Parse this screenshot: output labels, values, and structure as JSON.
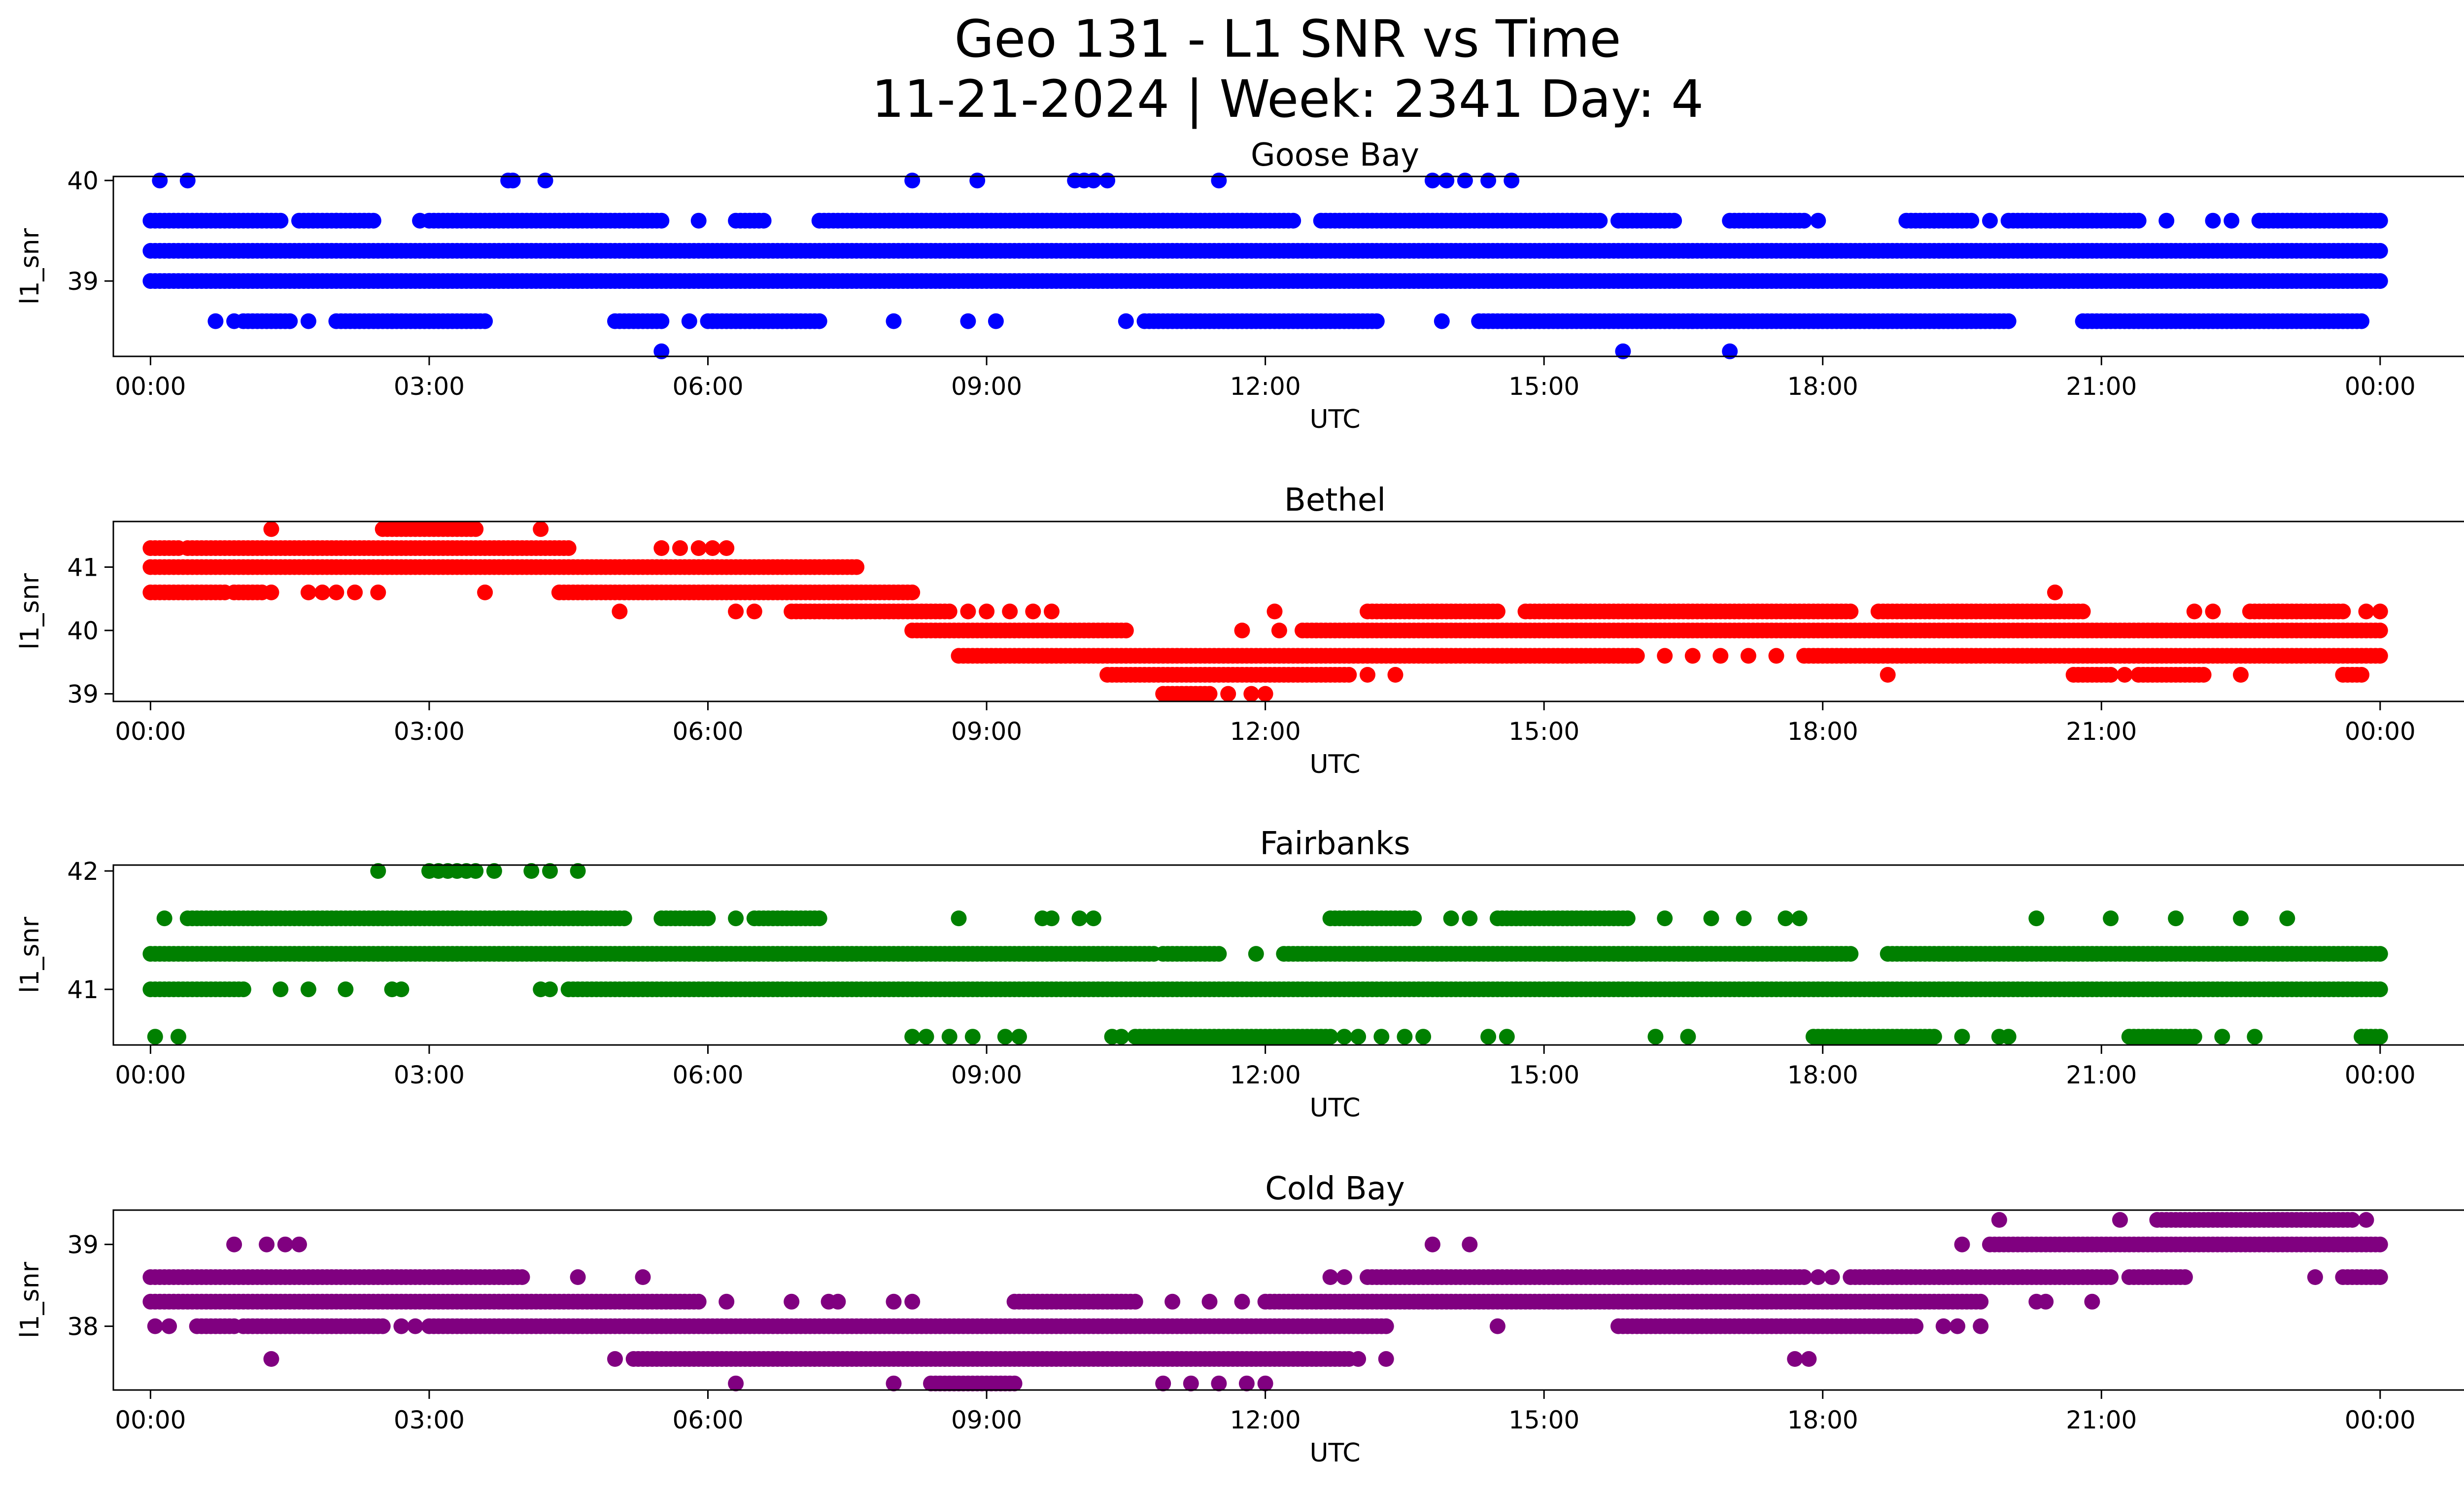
{
  "figure": {
    "title_line1": "Geo 131 - L1 SNR vs Time",
    "title_line2": "11-21-2024 | Week: 2341 Day: 4"
  },
  "chart_data": [
    {
      "type": "scatter",
      "title": "Goose Bay",
      "xlabel": "UTC",
      "ylabel": "l1_snr",
      "color": "#0000ff",
      "x_unit": "hours UTC on 11-21-2024 (24 = next 00:00)",
      "xlim": [
        -0.4,
        25.9
      ],
      "ylim": [
        38.25,
        40.04
      ],
      "xticks": [
        "00:00",
        "03:00",
        "06:00",
        "09:00",
        "12:00",
        "15:00",
        "18:00",
        "21:00",
        "00:00"
      ],
      "yticks": [
        39,
        40
      ],
      "series": [
        {
          "bands": [
            {
              "y": 39.3,
              "segments": [
                [
                  0.0,
                  24.0
                ]
              ]
            },
            {
              "y": 39.0,
              "segments": [
                [
                  0.0,
                  24.0
                ]
              ]
            },
            {
              "y": 39.6,
              "segments": [
                [
                  0.0,
                  1.4
                ],
                [
                  1.6,
                  2.4
                ],
                [
                  3.0,
                  5.5
                ],
                [
                  6.3,
                  6.6
                ],
                [
                  7.2,
                  12.3
                ],
                [
                  12.6,
                  15.6
                ],
                [
                  15.8,
                  16.4
                ],
                [
                  17.0,
                  17.8
                ],
                [
                  18.9,
                  19.6
                ],
                [
                  20.0,
                  21.4
                ],
                [
                  22.7,
                  24.0
                ]
              ],
              "points": [
                1.75,
                2.0,
                2.9,
                5.9,
                8.0,
                10.9,
                13.4,
                17.15,
                17.5,
                17.95,
                19.2,
                19.8,
                21.7,
                22.2,
                22.4
              ]
            },
            {
              "y": 38.6,
              "segments": [
                [
                  1.0,
                  1.5
                ],
                [
                  2.0,
                  2.6
                ],
                [
                  2.6,
                  3.6
                ],
                [
                  5.0,
                  5.5
                ],
                [
                  6.0,
                  7.2
                ],
                [
                  10.7,
                  13.2
                ],
                [
                  14.3,
                  16.6
                ],
                [
                  16.6,
                  20.0
                ],
                [
                  20.8,
                  23.8
                ]
              ],
              "points": [
                0.7,
                0.9,
                1.7,
                5.8,
                6.05,
                8.0,
                8.8,
                9.1,
                10.5,
                13.9
              ]
            },
            {
              "y": 40.0,
              "points": [
                0.1,
                0.4,
                3.85,
                3.9,
                4.25,
                8.2,
                8.9,
                9.95,
                10.05,
                10.15,
                10.3,
                11.5,
                13.8,
                13.95,
                14.15,
                14.4,
                14.65
              ]
            },
            {
              "y": 38.3,
              "points": [
                5.5,
                15.85,
                17.0
              ]
            }
          ]
        }
      ]
    },
    {
      "type": "scatter",
      "title": "Bethel",
      "xlabel": "UTC",
      "ylabel": "l1_snr",
      "color": "#ff0000",
      "x_unit": "hours UTC on 11-21-2024 (24 = next 00:00)",
      "xlim": [
        -0.4,
        25.9
      ],
      "ylim": [
        38.88,
        41.72
      ],
      "xticks": [
        "00:00",
        "03:00",
        "06:00",
        "09:00",
        "12:00",
        "15:00",
        "18:00",
        "21:00",
        "00:00"
      ],
      "yticks": [
        39,
        40,
        41
      ],
      "series": [
        {
          "bands": [
            {
              "y": 41.3,
              "segments": [
                [
                  0.0,
                  0.3
                ],
                [
                  0.4,
                  4.5
                ]
              ],
              "points": [
                5.5,
                5.7,
                5.9,
                6.05,
                6.2
              ]
            },
            {
              "y": 41.0,
              "segments": [
                [
                  0.0,
                  7.6
                ]
              ]
            },
            {
              "y": 40.6,
              "segments": [
                [
                  0.0,
                  0.8
                ],
                [
                  0.9,
                  1.2
                ],
                [
                  4.4,
                  8.2
                ]
              ],
              "points": [
                1.3,
                1.7,
                1.85,
                2.0,
                2.2,
                2.45,
                3.6,
                20.5
              ]
            },
            {
              "y": 40.3,
              "segments": [
                [
                  6.9,
                  8.6
                ],
                [
                  13.1,
                  14.5
                ],
                [
                  14.8,
                  18.3
                ],
                [
                  18.6,
                  20.8
                ],
                [
                  22.6,
                  23.6
                ]
              ],
              "points": [
                5.05,
                6.3,
                6.5,
                8.8,
                9.0,
                9.25,
                9.5,
                9.7,
                12.1,
                22.0,
                22.2,
                23.85,
                24.0
              ]
            },
            {
              "y": 40.0,
              "segments": [
                [
                  8.2,
                  10.5
                ],
                [
                  12.4,
                  24.0
                ]
              ],
              "points": [
                11.75,
                12.15
              ]
            },
            {
              "y": 39.6,
              "segments": [
                [
                  8.7,
                  16.0
                ],
                [
                  17.8,
                  24.0
                ]
              ],
              "points": [
                16.3,
                16.6,
                16.9,
                17.2,
                17.5
              ]
            },
            {
              "y": 39.3,
              "segments": [
                [
                  10.3,
                  12.9
                ],
                [
                  20.7,
                  21.1
                ],
                [
                  21.4,
                  22.1
                ],
                [
                  23.6,
                  23.8
                ]
              ],
              "points": [
                13.1,
                13.4,
                18.7,
                21.25,
                22.5
              ]
            },
            {
              "y": 39.0,
              "segments": [
                [
                  10.9,
                  11.4
                ]
              ],
              "points": [
                11.6,
                11.85,
                12.0
              ]
            },
            {
              "y": 41.6,
              "segments": [
                [
                  2.5,
                  3.5
                ]
              ],
              "points": [
                1.3,
                4.2
              ]
            }
          ]
        }
      ]
    },
    {
      "type": "scatter",
      "title": "Fairbanks",
      "xlabel": "UTC",
      "ylabel": "l1_snr",
      "color": "#008000",
      "x_unit": "hours UTC on 11-21-2024 (24 = next 00:00)",
      "xlim": [
        -0.4,
        25.9
      ],
      "ylim": [
        40.53,
        42.05
      ],
      "xticks": [
        "00:00",
        "03:00",
        "06:00",
        "09:00",
        "12:00",
        "15:00",
        "18:00",
        "21:00",
        "00:00"
      ],
      "yticks": [
        41,
        42
      ],
      "series": [
        {
          "bands": [
            {
              "y": 41.3,
              "segments": [
                [
                  0.0,
                  10.8
                ],
                [
                  10.9,
                  11.5
                ],
                [
                  12.2,
                  18.3
                ],
                [
                  18.7,
                  24.0
                ]
              ],
              "points": [
                11.9
              ]
            },
            {
              "y": 41.0,
              "segments": [
                [
                  0.0,
                  1.0
                ],
                [
                  4.5,
                  24.0
                ]
              ],
              "points": [
                1.4,
                1.7,
                2.1,
                2.6,
                2.7,
                4.2,
                4.3
              ]
            },
            {
              "y": 41.6,
              "segments": [
                [
                  0.4,
                  5.1
                ],
                [
                  5.5,
                  6.0
                ],
                [
                  6.5,
                  7.2
                ],
                [
                  12.7,
                  13.6
                ],
                [
                  14.5,
                  15.9
                ]
              ],
              "points": [
                0.15,
                6.3,
                8.7,
                9.6,
                9.7,
                10.0,
                10.15,
                14.0,
                14.2,
                16.3,
                16.8,
                17.15,
                17.6,
                17.75,
                20.3,
                21.1,
                21.8,
                22.5,
                23.0
              ]
            },
            {
              "y": 40.6,
              "segments": [
                [
                  10.6,
                  12.7
                ],
                [
                  17.9,
                  19.2
                ],
                [
                  21.3,
                  22.0
                ],
                [
                  23.8,
                  24.0
                ]
              ],
              "points": [
                0.05,
                0.3,
                8.2,
                8.35,
                8.6,
                8.85,
                9.2,
                9.35,
                10.35,
                10.45,
                12.85,
                13.0,
                13.25,
                13.5,
                13.7,
                14.4,
                14.6,
                16.2,
                16.55,
                19.5,
                19.9,
                20.0,
                22.3,
                22.65
              ]
            },
            {
              "y": 42.0,
              "points": [
                2.45,
                3.0,
                3.1,
                3.2,
                3.3,
                3.4,
                3.5,
                3.7,
                4.1,
                4.3,
                4.6
              ]
            }
          ]
        }
      ]
    },
    {
      "type": "scatter",
      "title": "Cold Bay",
      "xlabel": "UTC",
      "ylabel": "l1_snr",
      "color": "#800080",
      "x_unit": "hours UTC on 11-21-2024 (24 = next 00:00)",
      "xlim": [
        -0.4,
        25.9
      ],
      "ylim": [
        37.22,
        39.42
      ],
      "xticks": [
        "00:00",
        "03:00",
        "06:00",
        "09:00",
        "12:00",
        "15:00",
        "18:00",
        "21:00",
        "00:00"
      ],
      "yticks": [
        38,
        39
      ],
      "series": [
        {
          "bands": [
            {
              "y": 38.6,
              "segments": [
                [
                  0.0,
                  4.0
                ],
                [
                  13.1,
                  17.8
                ],
                [
                  18.3,
                  21.1
                ],
                [
                  21.3,
                  21.9
                ],
                [
                  23.6,
                  24.0
                ]
              ],
              "points": [
                4.6,
                5.3,
                12.7,
                12.85,
                17.95,
                18.1,
                23.3
              ]
            },
            {
              "y": 38.3,
              "segments": [
                [
                  0.0,
                  5.9
                ],
                [
                  9.3,
                  10.6
                ],
                [
                  12.0,
                  19.7
                ]
              ],
              "points": [
                6.2,
                6.9,
                7.3,
                7.4,
                8.0,
                8.2,
                11.0,
                11.4,
                11.75,
                20.3,
                20.4,
                20.9
              ]
            },
            {
              "y": 38.0,
              "segments": [
                [
                  0.5,
                  0.9
                ],
                [
                  1.0,
                  2.5
                ],
                [
                  3.0,
                  13.3
                ],
                [
                  15.8,
                  19.0
                ]
              ],
              "points": [
                0.05,
                0.2,
                2.7,
                2.85,
                14.5,
                19.3,
                19.45,
                19.7
              ]
            },
            {
              "y": 37.6,
              "segments": [
                [
                  5.2,
                  12.9
                ]
              ],
              "points": [
                1.3,
                5.0,
                13.0,
                13.3,
                17.7,
                17.85
              ]
            },
            {
              "y": 37.3,
              "segments": [
                [
                  8.4,
                  9.3
                ]
              ],
              "points": [
                6.3,
                8.0,
                10.9,
                11.2,
                11.5,
                11.8,
                12.0
              ]
            },
            {
              "y": 39.0,
              "segments": [
                [
                  19.8,
                  24.0
                ]
              ],
              "points": [
                0.9,
                1.25,
                1.45,
                1.6,
                13.8,
                14.2,
                19.5
              ]
            },
            {
              "y": 39.3,
              "segments": [
                [
                  21.6,
                  23.7
                ]
              ],
              "points": [
                19.9,
                21.2,
                23.85
              ]
            }
          ]
        }
      ]
    }
  ]
}
